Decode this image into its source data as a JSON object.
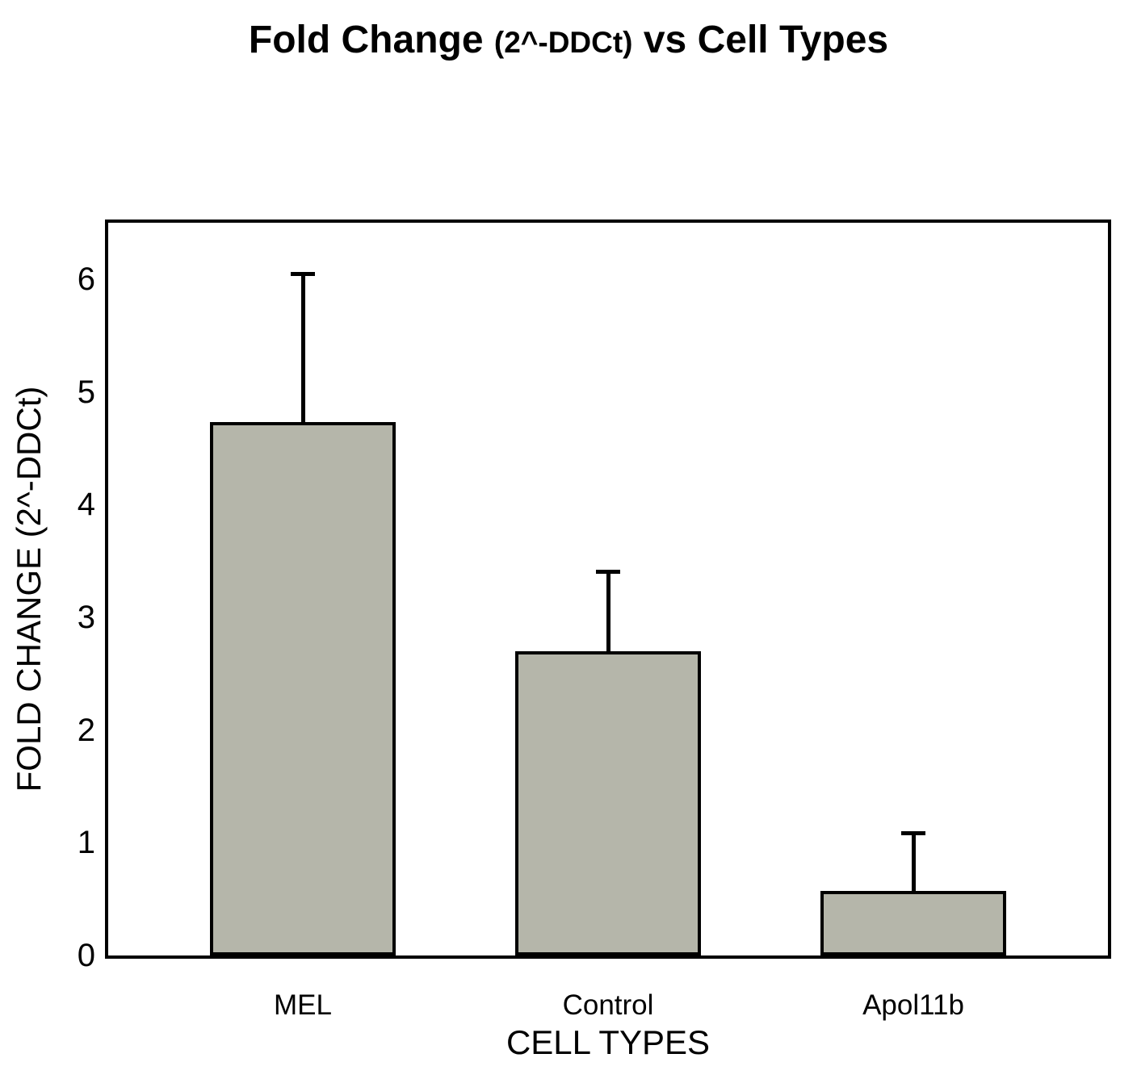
{
  "title": {
    "full": "Fold Change (2^-DDCt) vs Cell Types",
    "part_main": "Fold Change",
    "part_sub": "(2^-DDCt)",
    "part_tail": "vs Cell Types"
  },
  "chart_data": {
    "type": "bar",
    "title": "Fold Change (2^-DDCt) vs Cell Types",
    "categories": [
      "MEL",
      "Control",
      "Apol11b"
    ],
    "values": [
      4.73,
      2.7,
      0.57
    ],
    "errors": [
      1.33,
      0.72,
      0.53
    ],
    "error_direction": "upper-only",
    "xlabel": "CELL TYPES",
    "ylabel": "FOLD CHANGE (2^-DDCt)",
    "yticks": [
      0,
      1,
      2,
      3,
      4,
      5,
      6
    ],
    "ylim": [
      0,
      6.5
    ],
    "grid": false,
    "legend": false,
    "background_color": "#ffffff",
    "bar_color": "#b5b6aa",
    "bar_border_color": "#000000",
    "error_bar_color": "#000000",
    "frame_color": "#000000",
    "text_color": "#000000"
  }
}
